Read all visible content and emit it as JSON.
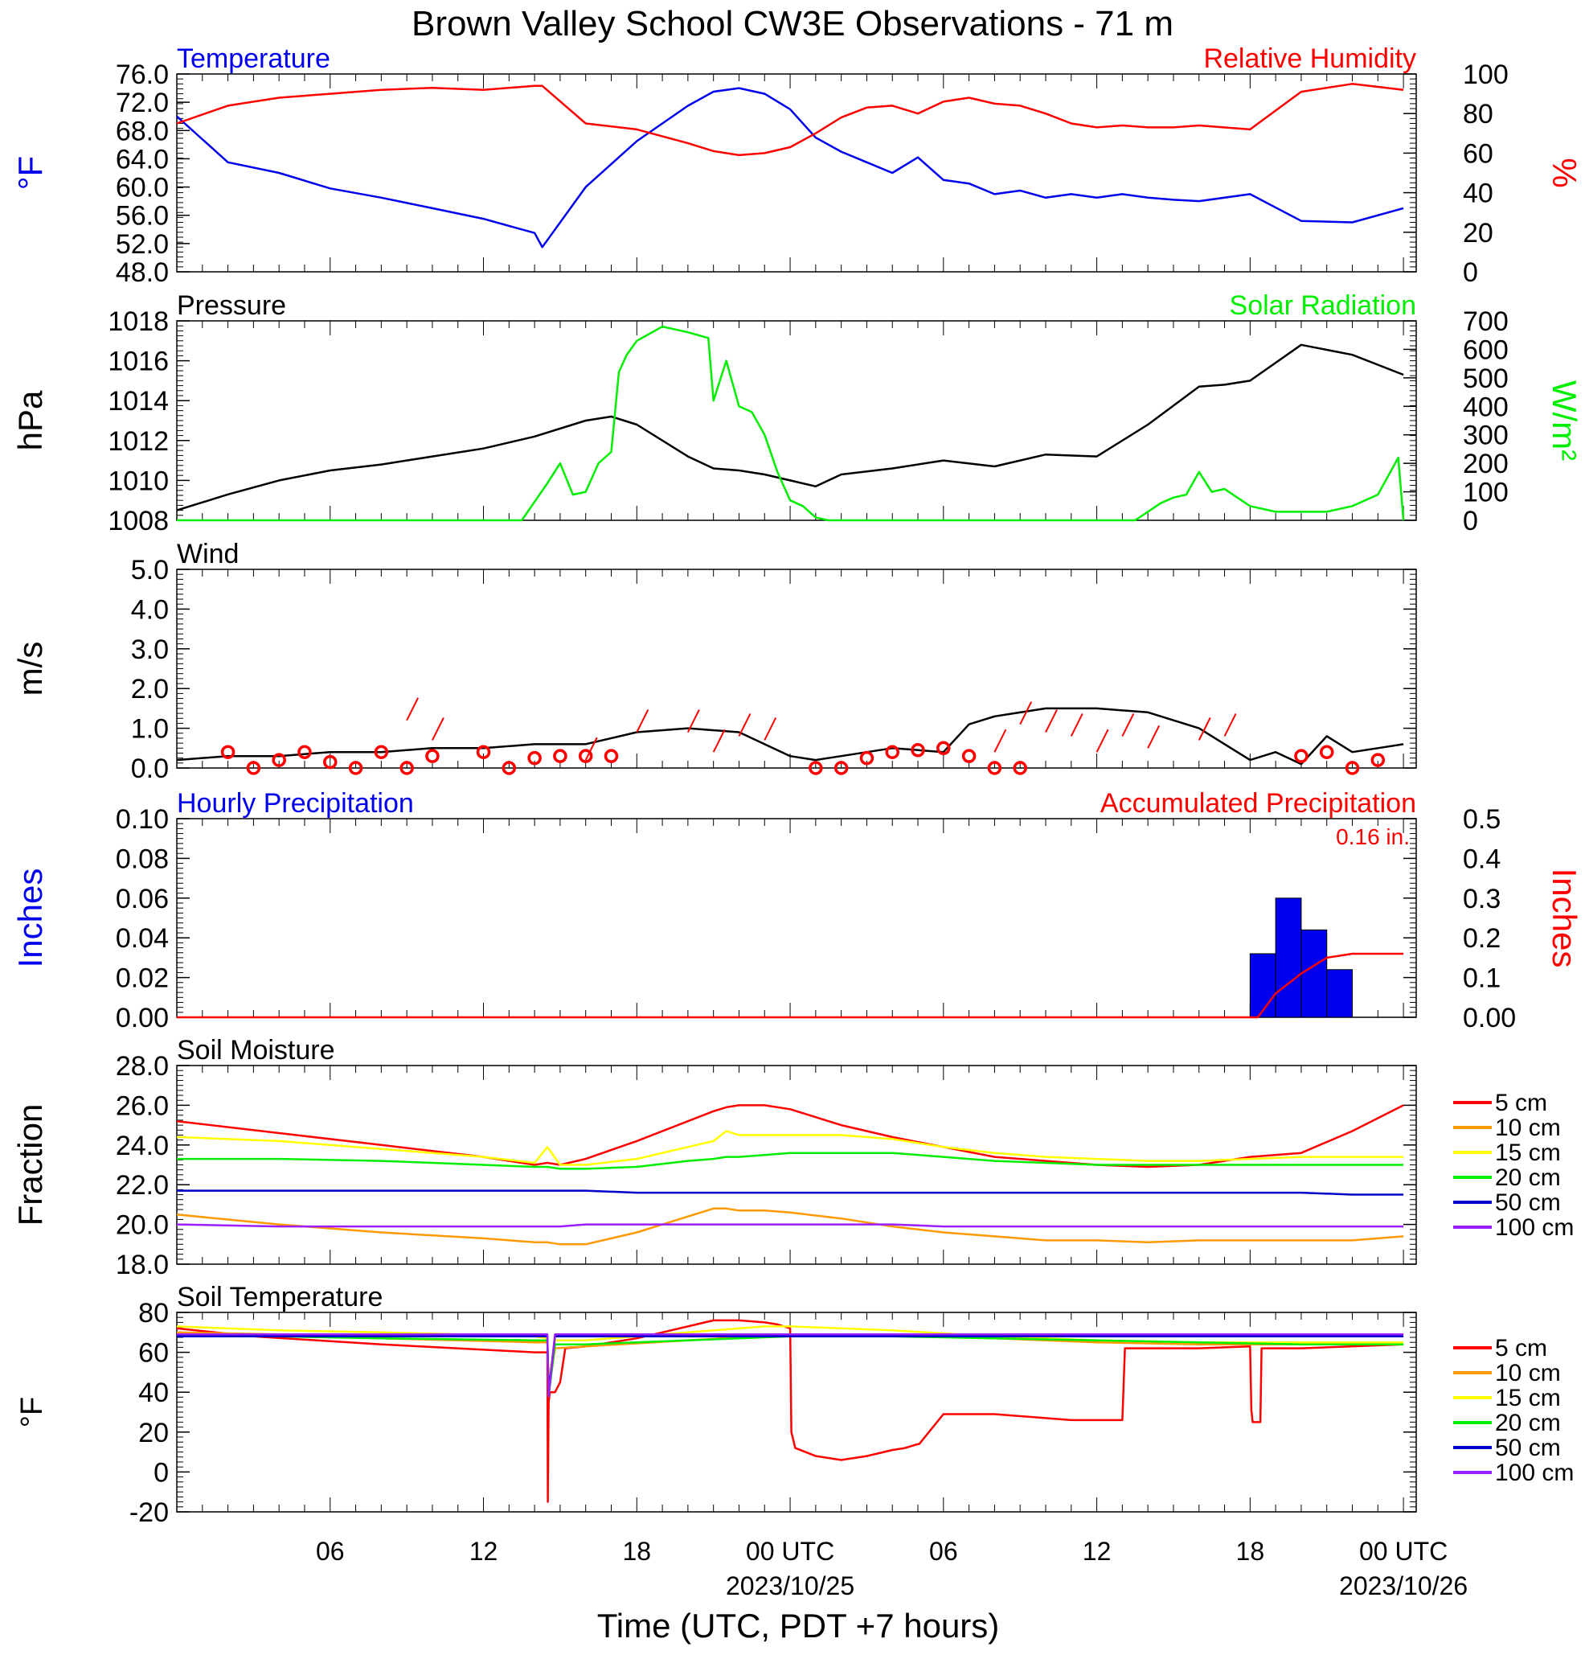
{
  "title": "Brown Valley School CW3E Observations - 71 m",
  "colors": {
    "red": "#ff0000",
    "blue": "#0000ee",
    "green": "#00ee00",
    "black": "#000000",
    "orange": "#ff9900",
    "yellow": "#ffff00",
    "purple": "#9a1eff",
    "blue2": "#0000cc"
  },
  "x_axis": {
    "ticks": [
      "06",
      "12",
      "18",
      "00 UTC",
      "06",
      "12",
      "18",
      "00 UTC"
    ],
    "dates": [
      "2023/10/25",
      "2023/10/26"
    ],
    "label": "Time (UTC, PDT +7 hours)"
  },
  "chart_data": [
    {
      "id": "temp_rh",
      "type": "line",
      "left_title": "Temperature",
      "right_title": "Relative Humidity",
      "ylabel": "°F",
      "y2label": "%",
      "ylim": [
        48,
        76
      ],
      "yticks": [
        "76.0",
        "72.0",
        "68.0",
        "64.0",
        "60.0",
        "56.0",
        "52.0",
        "48.0"
      ],
      "y2lim": [
        0,
        100
      ],
      "y2ticks": [
        "100",
        "80",
        "60",
        "40",
        "20",
        "0"
      ],
      "x_hours": [
        0,
        2,
        4,
        6,
        8,
        10,
        12,
        14,
        14.3,
        16,
        18,
        20,
        21,
        22,
        23,
        24,
        25,
        26,
        27,
        28,
        29,
        30,
        31,
        32,
        33,
        34,
        35,
        36,
        37,
        38,
        39,
        40,
        42,
        44,
        46,
        48
      ],
      "series": [
        {
          "name": "Temperature",
          "color": "#0000ee",
          "axis": "left",
          "values": [
            70,
            63.5,
            62,
            59.8,
            58.5,
            57,
            55.5,
            53.5,
            51.5,
            60,
            66.5,
            71.5,
            73.5,
            74,
            73.2,
            71,
            67,
            65,
            63.5,
            62,
            64.2,
            61,
            60.5,
            59,
            59.5,
            58.5,
            59,
            58.5,
            59,
            58.5,
            58.2,
            58,
            59,
            55.2,
            55,
            57
          ]
        },
        {
          "name": "Relative Humidity",
          "color": "#ff0000",
          "axis": "left2",
          "values": [
            75,
            84,
            88,
            90,
            92,
            93,
            92,
            94,
            94,
            75,
            72,
            65,
            61,
            59,
            60,
            63,
            70,
            78,
            83,
            84,
            80,
            86,
            88,
            85,
            84,
            80,
            75,
            73,
            74,
            73,
            73,
            74,
            72,
            91,
            95,
            92
          ]
        }
      ]
    },
    {
      "id": "pressure_solar",
      "type": "line",
      "left_title": "Pressure",
      "right_title": "Solar Radiation",
      "ylabel": "hPa",
      "y2label": "W/m²",
      "ylim": [
        1008,
        1018
      ],
      "yticks": [
        "1018",
        "1016",
        "1014",
        "1012",
        "1010",
        "1008"
      ],
      "y2lim": [
        0,
        700
      ],
      "y2ticks": [
        "700",
        "600",
        "500",
        "400",
        "300",
        "200",
        "100",
        "0"
      ],
      "series": [
        {
          "name": "Pressure",
          "color": "#000000",
          "axis": "left",
          "x_hours": [
            0,
            2,
            4,
            6,
            8,
            10,
            12,
            14,
            16,
            17,
            18,
            20,
            21,
            22,
            23,
            24,
            25,
            26,
            28,
            30,
            32,
            34,
            36,
            38,
            40,
            41,
            42,
            44,
            46,
            48
          ],
          "values": [
            1008.5,
            1009.3,
            1010,
            1010.5,
            1010.8,
            1011.2,
            1011.6,
            1012.2,
            1013,
            1013.2,
            1012.8,
            1011.2,
            1010.6,
            1010.5,
            1010.3,
            1010,
            1009.7,
            1010.3,
            1010.6,
            1011,
            1010.7,
            1011.3,
            1011.2,
            1012.8,
            1014.7,
            1014.8,
            1015,
            1016.8,
            1016.3,
            1015.3
          ]
        },
        {
          "name": "Solar Radiation",
          "color": "#00ee00",
          "axis": "right",
          "x_hours": [
            0,
            13.5,
            14.5,
            15,
            15.5,
            16,
            16.5,
            17,
            17.3,
            17.6,
            18,
            19,
            20,
            20.8,
            21,
            21.5,
            22,
            22.5,
            23,
            23.5,
            24,
            24.5,
            25,
            25.5,
            30,
            36,
            37.5,
            38.5,
            39,
            39.5,
            40,
            40.5,
            41,
            42,
            43,
            45,
            46,
            47,
            47.8,
            48
          ],
          "values": [
            0,
            0,
            130,
            200,
            90,
            100,
            200,
            240,
            520,
            580,
            630,
            680,
            660,
            640,
            420,
            560,
            400,
            380,
            300,
            170,
            70,
            50,
            10,
            0,
            0,
            0,
            0,
            60,
            80,
            90,
            170,
            100,
            110,
            50,
            30,
            30,
            50,
            90,
            220,
            0
          ]
        }
      ]
    },
    {
      "id": "wind",
      "type": "line",
      "left_title": "Wind",
      "ylabel": "m/s",
      "ylim": [
        0,
        5
      ],
      "yticks": [
        "5.0",
        "4.0",
        "3.0",
        "2.0",
        "1.0",
        "0.0"
      ],
      "x_hours": [
        0,
        2,
        4,
        6,
        8,
        10,
        12,
        14,
        16,
        18,
        20,
        22,
        23,
        24,
        25,
        26,
        28,
        30,
        31,
        32,
        34,
        36,
        38,
        40,
        42,
        43,
        44,
        45,
        46,
        47,
        48
      ],
      "series": [
        {
          "name": "Wind Speed",
          "color": "#000000",
          "values": [
            0.2,
            0.3,
            0.3,
            0.4,
            0.4,
            0.5,
            0.5,
            0.6,
            0.6,
            0.9,
            1,
            0.9,
            0.6,
            0.3,
            0.2,
            0.3,
            0.5,
            0.4,
            1.1,
            1.3,
            1.5,
            1.5,
            1.4,
            1,
            0.2,
            0.4,
            0.1,
            0.8,
            0.4,
            0.5,
            0.6
          ]
        }
      ],
      "calm_hours": [
        2,
        3,
        4,
        5,
        6,
        7,
        8,
        9,
        10,
        12,
        13,
        14,
        15,
        16,
        17,
        25,
        26,
        27,
        28,
        29,
        30,
        31,
        32,
        33,
        44,
        45,
        46,
        47
      ],
      "calm_values": [
        0.4,
        0,
        0.2,
        0.4,
        0.15,
        0,
        0.4,
        0,
        0.3,
        0.4,
        0,
        0.25,
        0.3,
        0.3,
        0.3,
        0,
        0,
        0.25,
        0.4,
        0.45,
        0.5,
        0.3,
        0,
        0,
        0.3,
        0.4,
        0,
        0.2
      ],
      "barb_hours": [
        9,
        10,
        16,
        18,
        20,
        21,
        22,
        23,
        32,
        33,
        34,
        35,
        36,
        37,
        38,
        40,
        41
      ],
      "barb_values": [
        1.2,
        0.7,
        0.2,
        0.9,
        0.9,
        0.4,
        0.8,
        0.7,
        0.4,
        1.1,
        0.9,
        0.8,
        0.4,
        0.8,
        0.5,
        0.7,
        0.8
      ]
    },
    {
      "id": "precip",
      "type": "bar",
      "left_title": "Hourly Precipitation",
      "right_title": "Accumulated Precipitation",
      "annotation": "0.16 in.",
      "ylabel": "Inches",
      "y2label": "Inches",
      "ylim": [
        0,
        0.1
      ],
      "yticks": [
        "0.10",
        "0.08",
        "0.06",
        "0.04",
        "0.02",
        "0.00"
      ],
      "y2lim": [
        0,
        0.5
      ],
      "y2ticks": [
        "0.5",
        "0.4",
        "0.3",
        "0.2",
        "0.1",
        "0.00"
      ],
      "bars": {
        "name": "Hourly Precipitation",
        "color": "#0000ee",
        "x_start_hours": [
          42,
          43,
          44,
          45
        ],
        "values": [
          0.032,
          0.06,
          0.044,
          0.024
        ]
      },
      "series": [
        {
          "name": "Accumulated Precipitation",
          "color": "#ff0000",
          "axis": "right",
          "x_hours": [
            0,
            42.3,
            43,
            44,
            45,
            46,
            48
          ],
          "values": [
            0,
            0,
            0.06,
            0.11,
            0.15,
            0.16,
            0.16
          ]
        }
      ]
    },
    {
      "id": "soil_moisture",
      "type": "line",
      "left_title": "Soil Moisture",
      "ylabel": "Fraction",
      "ylim": [
        18,
        28
      ],
      "yticks": [
        "28.0",
        "26.0",
        "24.0",
        "22.0",
        "20.0",
        "18.0"
      ],
      "legend": [
        "5 cm",
        "10 cm",
        "15 cm",
        "20 cm",
        "50 cm",
        "100 cm"
      ],
      "x_hours": [
        0,
        4,
        8,
        12,
        14,
        14.5,
        15,
        16,
        18,
        20,
        21,
        21.5,
        22,
        23,
        24,
        26,
        28,
        30,
        32,
        34,
        36,
        38,
        40,
        42,
        44,
        46,
        48
      ],
      "series": [
        {
          "name": "5 cm",
          "color": "#ff0000",
          "values": [
            25.2,
            24.6,
            24.0,
            23.4,
            23.0,
            23.1,
            23.0,
            23.3,
            24.2,
            25.2,
            25.7,
            25.9,
            26.0,
            26.0,
            25.8,
            25.0,
            24.4,
            23.9,
            23.4,
            23.2,
            23.0,
            22.9,
            23.0,
            23.4,
            23.6,
            24.7,
            26.0
          ]
        },
        {
          "name": "10 cm",
          "color": "#ff9900",
          "values": [
            20.5,
            20.0,
            19.6,
            19.3,
            19.1,
            19.1,
            19.0,
            19.0,
            19.6,
            20.4,
            20.8,
            20.8,
            20.7,
            20.7,
            20.6,
            20.3,
            19.9,
            19.6,
            19.4,
            19.2,
            19.2,
            19.1,
            19.2,
            19.2,
            19.2,
            19.2,
            19.4
          ]
        },
        {
          "name": "15 cm",
          "color": "#ffff00",
          "values": [
            24.4,
            24.2,
            23.8,
            23.4,
            23.1,
            23.9,
            23.0,
            23.0,
            23.3,
            23.9,
            24.2,
            24.7,
            24.5,
            24.5,
            24.5,
            24.5,
            24.3,
            23.9,
            23.6,
            23.4,
            23.3,
            23.2,
            23.2,
            23.3,
            23.4,
            23.4,
            23.4
          ]
        },
        {
          "name": "20 cm",
          "color": "#00ee00",
          "values": [
            23.3,
            23.3,
            23.2,
            23.0,
            22.9,
            22.9,
            22.8,
            22.8,
            22.9,
            23.2,
            23.3,
            23.4,
            23.4,
            23.5,
            23.6,
            23.6,
            23.6,
            23.4,
            23.2,
            23.1,
            23.0,
            23.0,
            23.0,
            23.0,
            23.0,
            23.0,
            23.0
          ]
        },
        {
          "name": "50 cm",
          "color": "#0000cc",
          "values": [
            21.7,
            21.7,
            21.7,
            21.7,
            21.7,
            21.7,
            21.7,
            21.7,
            21.6,
            21.6,
            21.6,
            21.6,
            21.6,
            21.6,
            21.6,
            21.6,
            21.6,
            21.6,
            21.6,
            21.6,
            21.6,
            21.6,
            21.6,
            21.6,
            21.6,
            21.5,
            21.5
          ]
        },
        {
          "name": "100 cm",
          "color": "#9a1eff",
          "values": [
            20.0,
            19.9,
            19.9,
            19.9,
            19.9,
            19.9,
            19.9,
            20.0,
            20.0,
            20.0,
            20.0,
            20.0,
            20.0,
            20.0,
            20.0,
            20.0,
            20.0,
            19.9,
            19.9,
            19.9,
            19.9,
            19.9,
            19.9,
            19.9,
            19.9,
            19.9,
            19.9
          ]
        }
      ]
    },
    {
      "id": "soil_temp",
      "type": "line",
      "left_title": "Soil Temperature",
      "ylabel": "°F",
      "ylim": [
        -20,
        80
      ],
      "yticks": [
        "80",
        "60",
        "40",
        "20",
        "0",
        "-20"
      ],
      "legend": [
        "5 cm",
        "10 cm",
        "15 cm",
        "20 cm",
        "50 cm",
        "100 cm"
      ],
      "series": [
        {
          "name": "5 cm",
          "color": "#ff0000",
          "x_hours": [
            0,
            3,
            8,
            14,
            14.5,
            14.52,
            14.55,
            14.6,
            14.8,
            15,
            15.2,
            16,
            18,
            20,
            21,
            22,
            23,
            23.5,
            24,
            24.05,
            24.2,
            25,
            26,
            27,
            28,
            28.5,
            29,
            29.05,
            30,
            32,
            35,
            37,
            37.05,
            37.1,
            40,
            42,
            42.05,
            42.1,
            42.4,
            42.45,
            44,
            48
          ],
          "values": [
            72,
            68,
            64,
            60,
            60,
            -15,
            35,
            40,
            40,
            45,
            62,
            63,
            67,
            73,
            76,
            76,
            75,
            74,
            72,
            20,
            12,
            8,
            6,
            8,
            11,
            12,
            14,
            14,
            29,
            29,
            26,
            26,
            44,
            62,
            62,
            63,
            31,
            25,
            25,
            62,
            62,
            64
          ]
        },
        {
          "name": "10 cm",
          "color": "#ff9900",
          "x_hours": [
            0,
            4,
            8,
            14,
            14.5,
            14.55,
            14.8,
            16,
            20,
            24,
            28,
            32,
            36,
            40,
            44,
            48
          ],
          "values": [
            70,
            69,
            67,
            65,
            65,
            40,
            62,
            63,
            66,
            69,
            69,
            67,
            65,
            64,
            64,
            64
          ]
        },
        {
          "name": "15 cm",
          "color": "#ffff00",
          "x_hours": [
            0,
            4,
            8,
            14,
            14.5,
            14.55,
            14.8,
            16,
            20,
            23,
            24,
            28,
            32,
            36,
            40,
            44,
            48
          ],
          "values": [
            73,
            71,
            70,
            68,
            67,
            45,
            66,
            66,
            70,
            73,
            73,
            71,
            68,
            66,
            65,
            65,
            65
          ]
        },
        {
          "name": "20 cm",
          "color": "#00ee00",
          "x_hours": [
            0,
            4,
            8,
            14,
            14.5,
            14.55,
            14.8,
            16,
            20,
            24,
            28,
            32,
            36,
            40,
            44,
            48
          ],
          "values": [
            69,
            68,
            67,
            66,
            66,
            38,
            64,
            64,
            66,
            68,
            68,
            67,
            66,
            65,
            64,
            64
          ]
        },
        {
          "name": "50 cm",
          "color": "#0000cc",
          "x_hours": [
            0,
            8,
            14,
            14.5,
            14.55,
            14.8,
            16,
            24,
            32,
            40,
            48
          ],
          "values": [
            68,
            68,
            68,
            68,
            40,
            68,
            68,
            68,
            68,
            68,
            68
          ]
        },
        {
          "name": "100 cm",
          "color": "#9a1eff",
          "x_hours": [
            0,
            8,
            14,
            14.5,
            14.55,
            14.8,
            16,
            24,
            32,
            40,
            48
          ],
          "values": [
            69,
            69,
            69,
            69,
            38,
            69,
            69,
            69,
            69,
            69,
            69
          ]
        }
      ]
    }
  ]
}
